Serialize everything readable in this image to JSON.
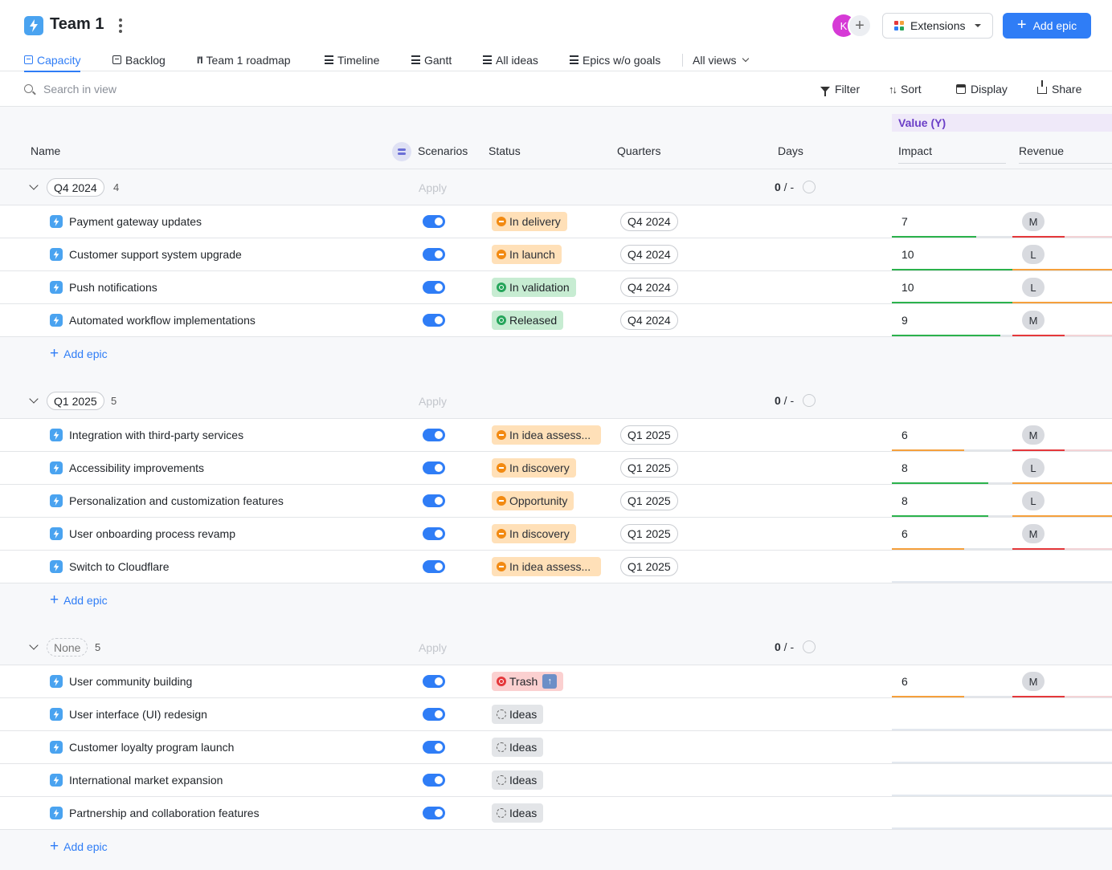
{
  "header": {
    "title": "Team 1",
    "avatar_initial": "K",
    "extensions_label": "Extensions",
    "add_epic_label": "Add epic"
  },
  "tabs": [
    {
      "label": "Capacity",
      "active": true
    },
    {
      "label": "Backlog"
    },
    {
      "label": "Team 1 roadmap"
    },
    {
      "label": "Timeline"
    },
    {
      "label": "Gantt"
    },
    {
      "label": "All ideas"
    },
    {
      "label": "Epics w/o goals"
    },
    {
      "label": "All views"
    }
  ],
  "toolbar": {
    "search_placeholder": "Search in view",
    "filter_label": "Filter",
    "sort_label": "Sort",
    "display_label": "Display",
    "share_label": "Share"
  },
  "columns": {
    "value_group": "Value (Y)",
    "name": "Name",
    "scenarios": "Scenarios",
    "status": "Status",
    "quarters": "Quarters",
    "days": "Days",
    "impact": "Impact",
    "revenue": "Revenue"
  },
  "colors": {
    "accent": "#2f7df6",
    "orange": "#f28a12",
    "green": "#25a55a",
    "red": "#e5383b",
    "value_header": "#6b3fc7"
  },
  "groups": [
    {
      "label": "Q4 2024",
      "count": "4",
      "apply": "Apply",
      "days_value": "0",
      "days_rest": " / -",
      "add_label": "Add epic",
      "rows": [
        {
          "name": "Payment gateway updates",
          "status": "In delivery",
          "status_kind": "orange",
          "quarter": "Q4 2024",
          "impact": "7",
          "impact_color": "#2bb24c",
          "impact_fill": 0.7,
          "revenue": "M",
          "revenue_kind": "M"
        },
        {
          "name": "Customer support system upgrade",
          "status": "In launch",
          "status_kind": "orange",
          "quarter": "Q4 2024",
          "impact": "10",
          "impact_color": "#2bb24c",
          "impact_fill": 1.0,
          "revenue": "L",
          "revenue_kind": "L"
        },
        {
          "name": "Push notifications",
          "status": "In validation",
          "status_kind": "green",
          "quarter": "Q4 2024",
          "impact": "10",
          "impact_color": "#2bb24c",
          "impact_fill": 1.0,
          "revenue": "L",
          "revenue_kind": "L"
        },
        {
          "name": "Automated workflow implementations",
          "status": "Released",
          "status_kind": "green",
          "quarter": "Q4 2024",
          "impact": "9",
          "impact_color": "#2bb24c",
          "impact_fill": 0.9,
          "revenue": "M",
          "revenue_kind": "M"
        }
      ]
    },
    {
      "label": "Q1 2025",
      "count": "5",
      "apply": "Apply",
      "days_value": "0",
      "days_rest": " / -",
      "add_label": "Add epic",
      "rows": [
        {
          "name": "Integration with third-party services",
          "status": "In idea assess...",
          "status_kind": "orange",
          "quarter": "Q1 2025",
          "impact": "6",
          "impact_color": "#f5a03c",
          "impact_fill": 0.6,
          "revenue": "M",
          "revenue_kind": "M"
        },
        {
          "name": "Accessibility improvements",
          "status": "In discovery",
          "status_kind": "orange",
          "quarter": "Q1 2025",
          "impact": "8",
          "impact_color": "#2bb24c",
          "impact_fill": 0.8,
          "revenue": "L",
          "revenue_kind": "L"
        },
        {
          "name": "Personalization and customization features",
          "status": "Opportunity",
          "status_kind": "orange",
          "quarter": "Q1 2025",
          "impact": "8",
          "impact_color": "#2bb24c",
          "impact_fill": 0.8,
          "revenue": "L",
          "revenue_kind": "L"
        },
        {
          "name": "User onboarding process revamp",
          "status": "In discovery",
          "status_kind": "orange",
          "quarter": "Q1 2025",
          "impact": "6",
          "impact_color": "#f5a03c",
          "impact_fill": 0.6,
          "revenue": "M",
          "revenue_kind": "M"
        },
        {
          "name": "Switch to Cloudflare",
          "status": "In idea assess...",
          "status_kind": "orange",
          "quarter": "Q1 2025",
          "impact": null,
          "revenue": null
        }
      ]
    },
    {
      "label": "None",
      "dashed": true,
      "count": "5",
      "apply": "Apply",
      "days_value": "0",
      "days_rest": " / -",
      "add_label": "Add epic",
      "rows": [
        {
          "name": "User community building",
          "status": "Trash",
          "status_kind": "red",
          "status_extra": "↑",
          "quarter": null,
          "impact": "6",
          "impact_color": "#f5a03c",
          "impact_fill": 0.6,
          "revenue": "M",
          "revenue_kind": "M"
        },
        {
          "name": "User interface (UI) redesign",
          "status": "Ideas",
          "status_kind": "gray",
          "quarter": null,
          "impact": null,
          "revenue": null
        },
        {
          "name": "Customer loyalty program launch",
          "status": "Ideas",
          "status_kind": "gray",
          "quarter": null,
          "impact": null,
          "revenue": null
        },
        {
          "name": "International market expansion",
          "status": "Ideas",
          "status_kind": "gray",
          "quarter": null,
          "impact": null,
          "revenue": null
        },
        {
          "name": "Partnership and collaboration features",
          "status": "Ideas",
          "status_kind": "gray",
          "quarter": null,
          "impact": null,
          "revenue": null
        }
      ]
    }
  ]
}
